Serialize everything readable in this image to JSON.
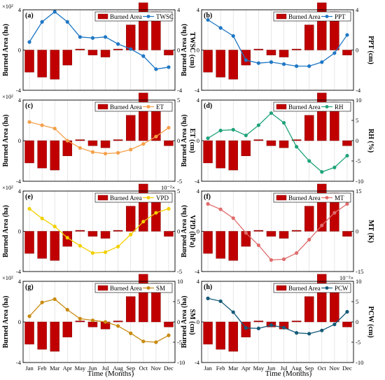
{
  "figure": {
    "x_axis_title": "Time (Months)",
    "months": [
      "Jan",
      "Feb",
      "Mar",
      "Apr",
      "May",
      "Jun",
      "Jul",
      "Aug",
      "Sep",
      "Oct",
      "Nov",
      "Dec"
    ],
    "left_axis_label": "Burned Area (ha)",
    "left_axis_exponent": "×10²",
    "bar_color": "#c00000"
  },
  "chart_data": [
    {
      "type": "bar+line",
      "panel_label": "(a)",
      "bar_legend": "Burned Area",
      "line_legend": "TWSC",
      "line_color": "#1f77c4",
      "right_axis_label": "TWSC (cm)",
      "right_ylim": [
        -4,
        4
      ],
      "right_ticks": [
        "-4",
        "0",
        "4"
      ],
      "left_ylim": [
        -4,
        4
      ],
      "left_ticks": [
        "-4",
        "0",
        "4"
      ],
      "left_exponent": "×10²",
      "right_exponent": "",
      "bar_values": [
        -2.2,
        -2.7,
        -2.9,
        -1.5,
        0.1,
        -0.5,
        -0.7,
        0.1,
        2.5,
        4.7,
        3.8,
        -0.5
      ],
      "line_values": [
        0.8,
        2.8,
        3.8,
        2.8,
        1.3,
        1.2,
        1.3,
        0.6,
        0.1,
        -0.6,
        -1.9,
        -1.7
      ]
    },
    {
      "type": "bar+line",
      "panel_label": "(b)",
      "bar_legend": "Burned Area",
      "line_legend": "PPT",
      "line_color": "#1f77c4",
      "right_axis_label": "PPT (cm)",
      "right_ylim": [
        -4,
        4
      ],
      "right_ticks": [
        "-4",
        "0",
        "4"
      ],
      "left_ylim": [
        -4,
        4
      ],
      "left_ticks": [
        "-4",
        "0",
        "4"
      ],
      "left_exponent": "",
      "right_exponent": "",
      "bar_values": [
        -2.2,
        -2.7,
        -2.9,
        -1.5,
        0.1,
        -0.5,
        -0.7,
        0.1,
        2.5,
        4.7,
        3.8,
        -0.5
      ],
      "line_values": [
        3.0,
        2.2,
        1.4,
        -1.0,
        -1.3,
        -1.2,
        -1.4,
        -1.6,
        -1.6,
        -1.2,
        -0.3,
        1.5
      ]
    },
    {
      "type": "bar+line",
      "panel_label": "(c)",
      "bar_legend": "Burned Area",
      "line_legend": "ET",
      "line_color": "#f5a04a",
      "right_axis_label": "ET (cm)",
      "right_ylim": [
        -5,
        5
      ],
      "right_ticks": [
        "-5",
        "0",
        "5"
      ],
      "left_ylim": [
        -4,
        4
      ],
      "left_ticks": [
        "-4",
        "0",
        "4"
      ],
      "left_exponent": "×10²",
      "right_exponent": "",
      "bar_values": [
        -2.2,
        -2.7,
        -2.9,
        -1.5,
        0.1,
        -0.5,
        -0.7,
        0.1,
        2.5,
        4.7,
        3.8,
        -0.5
      ],
      "line_values": [
        2.3,
        1.9,
        1.5,
        0.0,
        -0.9,
        -1.4,
        -1.6,
        -1.5,
        -1.1,
        -0.4,
        0.5,
        1.6
      ]
    },
    {
      "type": "bar+line",
      "panel_label": "(d)",
      "bar_legend": "Burned Area",
      "line_legend": "RH",
      "line_color": "#1fa37a",
      "right_axis_label": "RH (%)",
      "right_ylim": [
        -10,
        10
      ],
      "right_ticks": [
        "-10",
        "-5",
        "0",
        "5",
        "10"
      ],
      "left_ylim": [
        -4,
        4
      ],
      "left_ticks": [
        "-4",
        "0",
        "4"
      ],
      "left_exponent": "",
      "right_exponent": "",
      "bar_values": [
        -2.2,
        -2.7,
        -2.9,
        -1.5,
        0.1,
        -0.5,
        -0.7,
        0.1,
        2.5,
        4.7,
        3.8,
        -0.5
      ],
      "line_values": [
        0.6,
        2.5,
        2.7,
        1.3,
        3.8,
        6.8,
        4.4,
        -1.5,
        -5.0,
        -7.7,
        -6.6,
        -3.7
      ]
    },
    {
      "type": "bar+line",
      "panel_label": "(e)",
      "bar_legend": "Burned Area",
      "line_legend": "VPD",
      "line_color": "#f2d000",
      "right_axis_label": "VPD (hPa)",
      "right_ylim": [
        -5,
        5
      ],
      "right_ticks": [
        "-5",
        "0",
        "5"
      ],
      "left_ylim": [
        -4,
        4
      ],
      "left_ticks": [
        "-4",
        "0",
        "4"
      ],
      "left_exponent": "×10²",
      "right_exponent": "10⁻²×",
      "bar_values": [
        -2.2,
        -2.7,
        -2.9,
        -1.5,
        0.1,
        -0.5,
        -0.7,
        0.1,
        2.5,
        4.7,
        3.8,
        -0.5
      ],
      "line_values": [
        2.8,
        1.6,
        0.6,
        -0.8,
        -1.8,
        -2.7,
        -2.6,
        -1.9,
        -0.4,
        1.2,
        2.3,
        2.8
      ]
    },
    {
      "type": "bar+line",
      "panel_label": "(f)",
      "bar_legend": "Burned Area",
      "line_legend": "MT",
      "line_color": "#e06c6c",
      "right_axis_label": "MT (K)",
      "right_ylim": [
        -15,
        15
      ],
      "right_ticks": [
        "-15",
        "0",
        "15"
      ],
      "left_ylim": [
        -4,
        4
      ],
      "left_ticks": [
        "-4",
        "0",
        "4"
      ],
      "left_exponent": "",
      "right_exponent": "",
      "bar_values": [
        -2.2,
        -2.7,
        -2.9,
        -1.5,
        0.1,
        -0.5,
        -0.7,
        0.1,
        2.5,
        4.7,
        3.8,
        -0.5
      ],
      "line_values": [
        10.2,
        8.2,
        4.9,
        -0.6,
        -5.2,
        -10.7,
        -10.4,
        -8.1,
        -3.1,
        2.2,
        6.9,
        10.2
      ]
    },
    {
      "type": "bar+line",
      "panel_label": "(g)",
      "bar_legend": "Burned Area",
      "line_legend": "SM",
      "line_color": "#c88a10",
      "right_axis_label": "SM (cm)",
      "right_ylim": [
        -10,
        10
      ],
      "right_ticks": [
        "-10",
        "-5",
        "0",
        "5",
        "10"
      ],
      "left_ylim": [
        -4,
        4
      ],
      "left_ticks": [
        "-4",
        "0",
        "4"
      ],
      "left_exponent": "×10²",
      "right_exponent": "",
      "bar_values": [
        -2.2,
        -2.7,
        -2.9,
        -1.5,
        0.1,
        -0.5,
        -0.7,
        0.1,
        2.5,
        4.7,
        3.8,
        -0.5
      ],
      "line_values": [
        1.4,
        4.8,
        5.6,
        3.0,
        0.8,
        0.4,
        0.0,
        -1.0,
        -2.8,
        -4.8,
        -5.0,
        -3.3
      ]
    },
    {
      "type": "bar+line",
      "panel_label": "(h)",
      "bar_legend": "Burned Area",
      "line_legend": "PCW",
      "line_color": "#145a78",
      "right_axis_label": "PCW (cm)",
      "right_ylim": [
        -10,
        10
      ],
      "right_ticks": [
        "-10",
        "-5",
        "0",
        "5",
        "10"
      ],
      "left_ylim": [
        -4,
        4
      ],
      "left_ticks": [
        "-4",
        "0",
        "4"
      ],
      "left_exponent": "",
      "right_exponent": "10⁻²×",
      "bar_values": [
        -2.2,
        -2.7,
        -2.9,
        -1.5,
        0.1,
        -0.5,
        -0.7,
        0.1,
        2.5,
        4.7,
        3.8,
        -0.5
      ],
      "line_values": [
        5.8,
        5.1,
        2.4,
        -1.5,
        -1.6,
        -0.8,
        -1.4,
        -2.7,
        -2.9,
        -2.1,
        -0.6,
        2.5
      ]
    }
  ]
}
